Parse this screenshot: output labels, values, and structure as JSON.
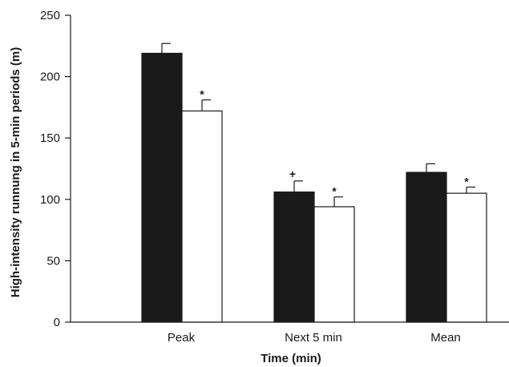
{
  "chart_data": {
    "type": "bar",
    "title": "",
    "xlabel": "Time (min)",
    "ylabel": "High-intensity runnung in 5-min periods (m)",
    "ylim": [
      0,
      250
    ],
    "yticks": [
      0,
      50,
      100,
      150,
      200,
      250
    ],
    "categories": [
      "Peak",
      "Next 5 min",
      "Mean"
    ],
    "series": [
      {
        "color": "#1a1a1a",
        "values": [
          219,
          106,
          122
        ],
        "errors": [
          8,
          9,
          7
        ],
        "annotations": [
          "",
          "+",
          ""
        ]
      },
      {
        "color": "#ffffff",
        "values": [
          172,
          94,
          105
        ],
        "errors": [
          9,
          8,
          5
        ],
        "annotations": [
          "*",
          "*",
          "*"
        ]
      }
    ],
    "grid": false,
    "legend": "none"
  }
}
